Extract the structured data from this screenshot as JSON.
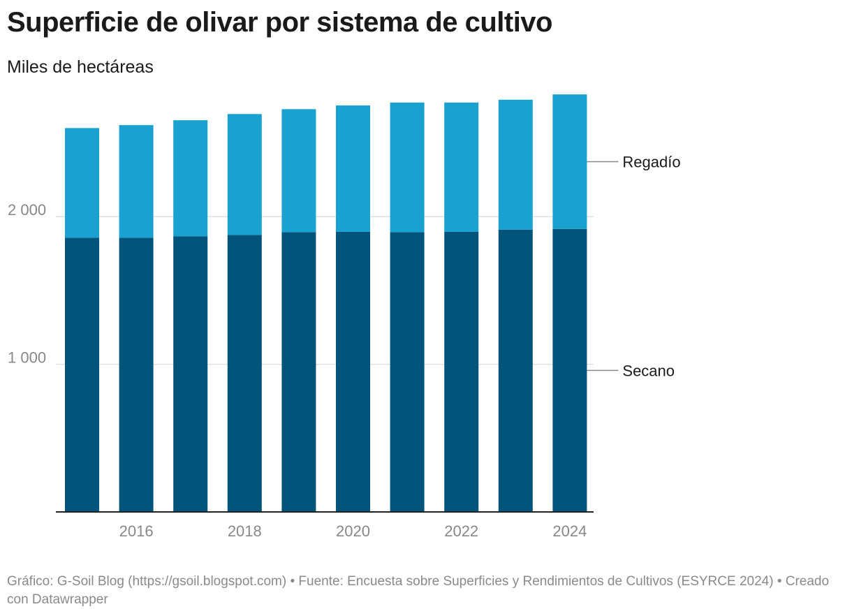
{
  "header": {
    "title": "Superficie de olivar por sistema de cultivo",
    "subtitle": "Miles de hectáreas"
  },
  "footer": {
    "text": "Gráfico: G-Soil Blog (https://gsoil.blogspot.com) • Fuente: Encuesta sobre Superficies y Rendimientos de Cultivos (ESYRCE 2024) • Creado con Datawrapper"
  },
  "colors": {
    "secano": "#03547a",
    "regadio": "#19a2cf",
    "grid": "#e0e0e0",
    "axis": "#222222",
    "connector": "#888888"
  },
  "chart_data": {
    "type": "bar",
    "stacked": true,
    "title": "Superficie de olivar por sistema de cultivo",
    "ylabel": "Miles de hectáreas",
    "xlabel": "",
    "categories": [
      "2015",
      "2016",
      "2017",
      "2018",
      "2019",
      "2020",
      "2021",
      "2022",
      "2023",
      "2024"
    ],
    "x_tick_labels": [
      "2016",
      "2018",
      "2020",
      "2022",
      "2024"
    ],
    "y_ticks": [
      1000,
      2000
    ],
    "y_tick_labels": [
      "1 000",
      "2 000"
    ],
    "ylim": [
      0,
      2850
    ],
    "grid": true,
    "legend": "inline-right",
    "series": [
      {
        "name": "Secano",
        "color": "#03547a",
        "values": [
          1857,
          1857,
          1867,
          1876,
          1895,
          1897,
          1895,
          1897,
          1912,
          1917
        ]
      },
      {
        "name": "Regadío",
        "color": "#19a2cf",
        "values": [
          743,
          763,
          786,
          819,
          833,
          856,
          878,
          876,
          880,
          911
        ]
      }
    ]
  }
}
